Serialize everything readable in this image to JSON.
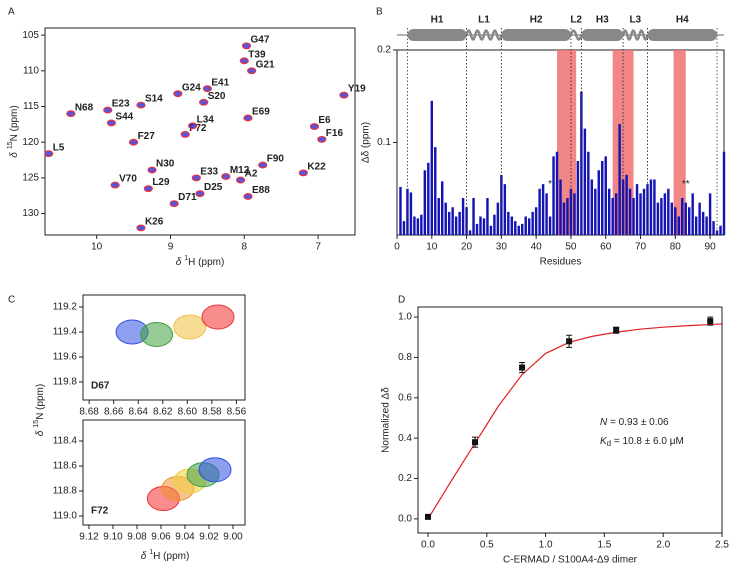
{
  "chart_data": [
    {
      "type": "spectrum",
      "panel": "A",
      "xlabel": {
        "symbol": "δ",
        "isotope": "1",
        "text": "H (ppm)"
      },
      "ylabel": {
        "symbol": "δ",
        "isotope": "15",
        "text": "N (ppm)"
      },
      "xlim": [
        10.7,
        6.5
      ],
      "xticks": [
        10,
        9,
        8,
        7
      ],
      "ylim": [
        133,
        104
      ],
      "yticks": [
        105,
        110,
        115,
        120,
        125,
        130
      ],
      "colors": [
        "#2a2ad8",
        "#e8303a"
      ],
      "peaks": [
        {
          "label": "G47",
          "x": 7.97,
          "y": 106.5
        },
        {
          "label": "T39",
          "x": 8.0,
          "y": 108.6
        },
        {
          "label": "G21",
          "x": 7.9,
          "y": 110.0
        },
        {
          "label": "E41",
          "x": 8.5,
          "y": 112.5
        },
        {
          "label": "G24",
          "x": 8.9,
          "y": 113.2
        },
        {
          "label": "S20",
          "x": 8.55,
          "y": 114.4
        },
        {
          "label": "S14",
          "x": 9.4,
          "y": 114.8
        },
        {
          "label": "E23",
          "x": 9.85,
          "y": 115.5
        },
        {
          "label": "N68",
          "x": 10.35,
          "y": 116.0
        },
        {
          "label": "S44",
          "x": 9.8,
          "y": 117.3
        },
        {
          "label": "E69",
          "x": 7.95,
          "y": 116.6
        },
        {
          "label": "Y19",
          "x": 6.65,
          "y": 113.4
        },
        {
          "label": "E6",
          "x": 7.05,
          "y": 117.8
        },
        {
          "label": "F16",
          "x": 6.95,
          "y": 119.6
        },
        {
          "label": "F72",
          "x": 8.8,
          "y": 118.9
        },
        {
          "label": "L34",
          "x": 8.7,
          "y": 117.7
        },
        {
          "label": "F27",
          "x": 9.5,
          "y": 120.0
        },
        {
          "label": "L5",
          "x": 10.65,
          "y": 121.6
        },
        {
          "label": "N30",
          "x": 9.25,
          "y": 123.9
        },
        {
          "label": "F90",
          "x": 7.75,
          "y": 123.2
        },
        {
          "label": "K22",
          "x": 7.2,
          "y": 124.3
        },
        {
          "label": "M12",
          "x": 8.25,
          "y": 124.8
        },
        {
          "label": "E33",
          "x": 8.65,
          "y": 125.0
        },
        {
          "label": "A2",
          "x": 8.05,
          "y": 125.3
        },
        {
          "label": "D25",
          "x": 8.6,
          "y": 127.2
        },
        {
          "label": "E88",
          "x": 7.95,
          "y": 127.6
        },
        {
          "label": "V70",
          "x": 9.75,
          "y": 126.0
        },
        {
          "label": "L29",
          "x": 9.3,
          "y": 126.5
        },
        {
          "label": "D71",
          "x": 8.95,
          "y": 128.6
        },
        {
          "label": "K26",
          "x": 9.4,
          "y": 132.0
        }
      ]
    },
    {
      "type": "bar",
      "panel": "B",
      "xlabel": "Residues",
      "ylabel": "Δδ (ppm)",
      "color": "#1414b4",
      "xlim": [
        0,
        94
      ],
      "xticks": [
        0,
        10,
        20,
        30,
        40,
        50,
        60,
        70,
        80,
        90
      ],
      "ylim": [
        0,
        0.2
      ],
      "yticks": [
        0.1,
        0.2
      ],
      "x": [
        1,
        2,
        3,
        4,
        5,
        6,
        7,
        8,
        9,
        10,
        11,
        12,
        13,
        14,
        15,
        16,
        17,
        18,
        19,
        20,
        21,
        22,
        23,
        24,
        25,
        26,
        27,
        28,
        29,
        30,
        31,
        32,
        33,
        34,
        35,
        36,
        37,
        38,
        39,
        40,
        41,
        42,
        43,
        44,
        45,
        46,
        47,
        48,
        49,
        50,
        51,
        52,
        53,
        54,
        55,
        56,
        57,
        58,
        59,
        60,
        61,
        62,
        63,
        64,
        65,
        66,
        67,
        68,
        69,
        70,
        71,
        72,
        73,
        74,
        75,
        76,
        77,
        78,
        79,
        80,
        81,
        82,
        83,
        84,
        85,
        86,
        87,
        88,
        89,
        90,
        91,
        92,
        93,
        94
      ],
      "values": [
        0.052,
        0.015,
        0.05,
        0.046,
        0.02,
        0.018,
        0.022,
        0.07,
        0.078,
        0.145,
        0.095,
        0.04,
        0.058,
        0.035,
        0.025,
        0.03,
        0.02,
        0.025,
        0.04,
        0.03,
        0.005,
        0.04,
        0.012,
        0.02,
        0.018,
        0.04,
        0.01,
        0.022,
        0.035,
        0.065,
        0.055,
        0.025,
        0.02,
        0.015,
        0.01,
        0.012,
        0.02,
        0.018,
        0.025,
        0.03,
        0.05,
        0.055,
        0.045,
        0.02,
        0.085,
        0.09,
        0.06,
        0.035,
        0.04,
        0.05,
        0.045,
        0.08,
        0.155,
        0.115,
        0.09,
        0.06,
        0.05,
        0.07,
        0.08,
        0.085,
        0.05,
        0.04,
        0.045,
        0.12,
        0.06,
        0.065,
        0.05,
        0.04,
        0.055,
        0.045,
        0.05,
        0.055,
        0.06,
        0.06,
        0.035,
        0.04,
        0.045,
        0.05,
        0.035,
        0.03,
        0.02,
        0.04,
        0.035,
        0.03,
        0.045,
        0.02,
        0.035,
        0.025,
        0.02,
        0.045,
        0.015,
        0.005,
        0.01,
        0.09
      ],
      "highlights": [
        [
          46,
          51.5
        ],
        [
          62,
          68
        ],
        [
          79.5,
          83
        ]
      ],
      "highlight_color": "#f07070",
      "segments": [
        {
          "label": "H1",
          "start": 3,
          "end": 20,
          "kind": "helix"
        },
        {
          "label": "L1",
          "start": 20,
          "end": 30,
          "kind": "loop"
        },
        {
          "label": "H2",
          "start": 30,
          "end": 50,
          "kind": "helix"
        },
        {
          "label": "L2",
          "start": 50,
          "end": 53,
          "kind": "loop"
        },
        {
          "label": "H3",
          "start": 53,
          "end": 65,
          "kind": "helix"
        },
        {
          "label": "L3",
          "start": 65,
          "end": 72,
          "kind": "loop"
        },
        {
          "label": "H4",
          "start": 72,
          "end": 92,
          "kind": "helix"
        }
      ],
      "annotations": [
        {
          "text": "*",
          "x": 44,
          "y": 0.055
        },
        {
          "text": "**",
          "x": 83,
          "y": 0.055
        }
      ]
    },
    {
      "type": "contour",
      "panel": "C",
      "xlabel": {
        "symbol": "δ",
        "isotope": "1",
        "text": "H (ppm)"
      },
      "ylabel": {
        "symbol": "δ",
        "isotope": "15",
        "text": "N (ppm)"
      },
      "subplots": [
        {
          "label": "D67",
          "xlim": [
            8.685,
            8.553
          ],
          "ylim": [
            119.944,
            119.104
          ],
          "xticks": [
            8.68,
            8.66,
            8.64,
            8.62,
            {
              "value": 8.6,
              "label": "8.60"
            },
            8.58,
            8.56
          ],
          "yticks": [
            119.2,
            119.4,
            119.6,
            119.8
          ],
          "peaks": [
            {
              "color": "#3050e0",
              "x": 8.645,
              "y": 119.4
            },
            {
              "color": "#40a040",
              "x": 8.625,
              "y": 119.42
            },
            {
              "color": "#f0c040",
              "x": 8.598,
              "y": 119.36
            },
            {
              "color": "#f03030",
              "x": 8.575,
              "y": 119.28
            }
          ]
        },
        {
          "label": "F72",
          "xlim": [
            9.125,
            8.99
          ],
          "ylim": [
            119.072,
            118.232
          ],
          "xticks": [
            9.12,
            {
              "value": 9.1,
              "label": "9.10"
            },
            9.08,
            9.06,
            9.04,
            9.02,
            {
              "value": 9,
              "label": "9.00"
            }
          ],
          "yticks": [
            118.4,
            118.6,
            118.8,
            {
              "value": 119,
              "label": "119.0"
            }
          ],
          "peaks": [
            {
              "color": "#f03030",
              "x": 9.058,
              "y": 118.86
            },
            {
              "color": "#f09030",
              "x": 9.046,
              "y": 118.78
            },
            {
              "color": "#f0d040",
              "x": 9.036,
              "y": 118.72
            },
            {
              "color": "#40a040",
              "x": 9.025,
              "y": 118.67
            },
            {
              "color": "#3050e0",
              "x": 9.015,
              "y": 118.63
            }
          ]
        }
      ]
    },
    {
      "type": "scatter",
      "panel": "D",
      "xlabel": "C-ERMAD / S100A4-Δ9 dimer",
      "ylabel": "Normalized Δδ",
      "color": "#111111",
      "xlim": [
        -0.085,
        2.5
      ],
      "xticks": [
        {
          "value": 0,
          "label": "0.0"
        },
        0.5,
        {
          "value": 1,
          "label": "1.0"
        },
        1.5,
        {
          "value": 2,
          "label": "2.0"
        },
        2.5
      ],
      "ylim": [
        -0.07,
        1.05
      ],
      "yticks": [
        {
          "value": 0,
          "label": "0.0"
        },
        0.2,
        0.4,
        0.6,
        0.8,
        {
          "value": 1,
          "label": "1.0"
        }
      ],
      "x": [
        0,
        0.4,
        0.8,
        1.2,
        1.6,
        2.4
      ],
      "values": [
        0.01,
        0.38,
        0.75,
        0.88,
        0.935,
        0.98
      ],
      "errors": [
        0.01,
        0.025,
        0.025,
        0.03,
        0.015,
        0.02
      ],
      "fit": {
        "color": "#e02020",
        "x": [
          0,
          0.2,
          0.4,
          0.6,
          0.8,
          1.0,
          1.2,
          1.4,
          1.6,
          1.8,
          2.0,
          2.2,
          2.4,
          2.5
        ],
        "y": [
          0.0,
          0.19,
          0.375,
          0.56,
          0.715,
          0.82,
          0.875,
          0.905,
          0.925,
          0.94,
          0.95,
          0.957,
          0.963,
          0.966
        ]
      },
      "annotations": [
        {
          "symbol": "N",
          "text": " = 0.93 ± 0.06"
        },
        {
          "symbol": "K",
          "subscript": "d",
          "text": " = 10.8 ± 6.0 μM"
        }
      ]
    }
  ]
}
